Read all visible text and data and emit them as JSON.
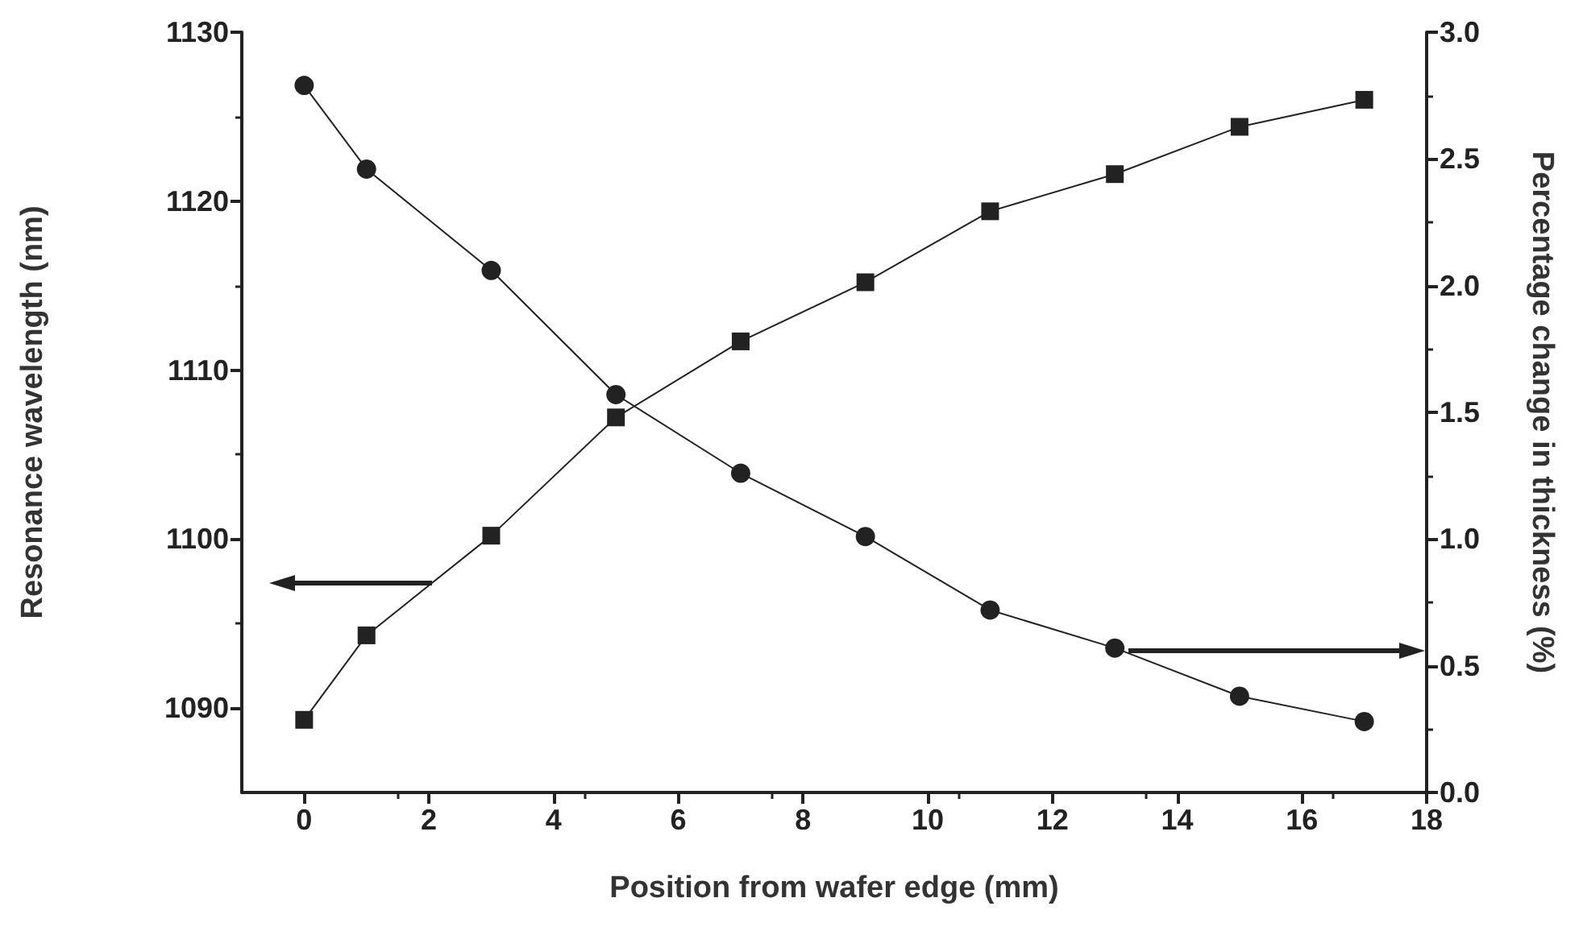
{
  "chart_data": {
    "type": "line",
    "xlabel": "Position from wafer edge (mm)",
    "ylabel": "Resonance wavelength (nm)",
    "y2label": "Percentage change in thickness (%)",
    "xlim": [
      -1,
      18
    ],
    "xticks": [
      0,
      2,
      4,
      6,
      8,
      10,
      12,
      14,
      16,
      18
    ],
    "ylim": [
      1085,
      1130
    ],
    "yticks": [
      1090,
      1100,
      1110,
      1120,
      1130
    ],
    "y2lim": [
      0,
      3
    ],
    "y2ticks": [
      {
        "value": 0,
        "label": "0.0"
      },
      0.5,
      {
        "value": 1,
        "label": "1.0"
      },
      1.5,
      {
        "value": 2,
        "label": "2.0"
      },
      2.5,
      {
        "value": 3,
        "label": "3.0"
      }
    ],
    "grid": false,
    "line_style": "solid",
    "series": [
      {
        "color": "#222222",
        "marker": "square",
        "x": [
          0,
          1,
          3,
          5,
          7,
          9,
          11,
          13,
          15,
          17
        ],
        "values": [
          1089.3,
          1094.3,
          1100.2,
          1107.2,
          1111.7,
          1115.2,
          1119.4,
          1121.6,
          1124.4,
          1126.0
        ]
      },
      {
        "color": "#222222",
        "marker": "circle",
        "axis": "y2",
        "x": [
          0,
          1,
          3,
          5,
          7,
          9,
          11,
          13,
          15,
          17
        ],
        "values": [
          2.79,
          2.46,
          2.06,
          1.57,
          1.26,
          1.01,
          0.72,
          0.57,
          0.38,
          0.28
        ]
      }
    ]
  }
}
